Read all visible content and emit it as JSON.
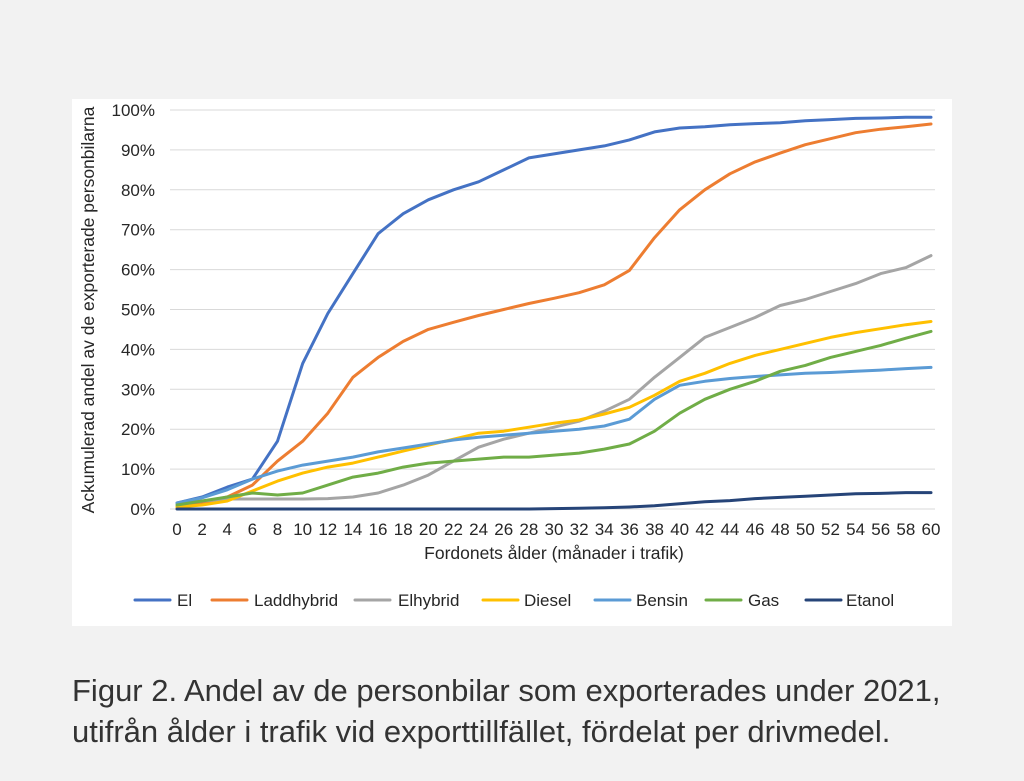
{
  "colors": {
    "page_background": "#f2f2f2",
    "panel_background": "#ffffff",
    "gridline": "#d9d9d9",
    "chart_text": "#262626",
    "caption_text": "#333333"
  },
  "figure": {
    "caption_line1": "Figur 2. Andel av de personbilar som exporterades under 2021,",
    "caption_line2": "utifrån ålder i trafik vid exporttillfället, fördelat per drivmedel."
  },
  "chart_data": {
    "type": "line",
    "xlabel": "Fordonets ålder (månader i trafik)",
    "ylabel": "Ackumulerad andel av de exporterade personbilarna",
    "xlim": [
      0,
      60
    ],
    "ylim": [
      0,
      100
    ],
    "grid": "horizontal",
    "legend_position": "bottom",
    "x": [
      0,
      2,
      4,
      6,
      8,
      10,
      12,
      14,
      16,
      18,
      20,
      22,
      24,
      26,
      28,
      30,
      32,
      34,
      36,
      38,
      40,
      42,
      44,
      46,
      48,
      50,
      52,
      54,
      56,
      58,
      60
    ],
    "x_tick_labels": [
      "0",
      "2",
      "4",
      "6",
      "8",
      "10",
      "12",
      "14",
      "16",
      "18",
      "20",
      "22",
      "24",
      "26",
      "28",
      "30",
      "32",
      "34",
      "36",
      "38",
      "40",
      "42",
      "44",
      "46",
      "48",
      "50",
      "52",
      "54",
      "56",
      "58",
      "60"
    ],
    "y_tick_labels": [
      "0%",
      "10%",
      "20%",
      "30%",
      "40%",
      "50%",
      "60%",
      "70%",
      "80%",
      "90%",
      "100%"
    ],
    "series": [
      {
        "name": "El",
        "color": "#4472C4",
        "values": [
          1.5,
          3,
          5.5,
          7.5,
          17,
          36.5,
          49,
          59,
          69,
          74,
          77.5,
          80,
          82,
          85,
          88,
          89,
          90,
          91,
          92.5,
          94.5,
          95.5,
          95.8,
          96.3,
          96.6,
          96.8,
          97.3,
          97.6,
          97.9,
          98,
          98.2,
          98.2
        ]
      },
      {
        "name": "Laddhybrid",
        "color": "#ED7D31",
        "values": [
          0.5,
          1.5,
          3,
          6,
          12,
          17,
          24,
          33,
          38,
          42,
          45,
          46.8,
          48.5,
          50,
          51.5,
          52.8,
          54.2,
          56.2,
          59.8,
          68,
          75,
          80,
          84,
          87,
          89.2,
          91.3,
          92.8,
          94.3,
          95.2,
          95.8,
          96.5
        ]
      },
      {
        "name": "Elhybrid",
        "color": "#A5A5A5",
        "values": [
          1.5,
          2,
          2.5,
          2.5,
          2.5,
          2.5,
          2.6,
          3,
          4,
          6,
          8.5,
          12,
          15.5,
          17.5,
          19,
          20.5,
          22,
          24.5,
          27.5,
          33,
          38,
          43,
          45.5,
          48,
          51,
          52.5,
          54.5,
          56.5,
          59,
          60.5,
          63.5
        ]
      },
      {
        "name": "Diesel",
        "color": "#FFC000",
        "values": [
          0.5,
          1,
          2,
          4.5,
          7,
          9,
          10.5,
          11.5,
          13,
          14.5,
          16,
          17.5,
          19,
          19.5,
          20.5,
          21.5,
          22.3,
          23.8,
          25.5,
          28.5,
          32,
          34,
          36.5,
          38.5,
          40,
          41.5,
          43,
          44.2,
          45.2,
          46.2,
          47
        ]
      },
      {
        "name": "Bensin",
        "color": "#5B9BD5",
        "values": [
          1.5,
          2.8,
          4.8,
          7.5,
          9.5,
          11,
          12,
          13,
          14.3,
          15.3,
          16.3,
          17.3,
          18,
          18.5,
          19,
          19.5,
          20,
          20.8,
          22.5,
          27.5,
          31,
          32,
          32.7,
          33.2,
          33.6,
          34,
          34.2,
          34.5,
          34.8,
          35.2,
          35.5
        ]
      },
      {
        "name": "Gas",
        "color": "#70AD47",
        "values": [
          1,
          2,
          3,
          4,
          3.5,
          4,
          6,
          8,
          9,
          10.5,
          11.5,
          12,
          12.5,
          13,
          13,
          13.5,
          14,
          15,
          16.3,
          19.5,
          24,
          27.5,
          30,
          32,
          34.5,
          36,
          38,
          39.5,
          41,
          42.8,
          44.5
        ]
      },
      {
        "name": "Etanol",
        "color": "#264478",
        "values": [
          0,
          0,
          0,
          0,
          0,
          0,
          0,
          0,
          0,
          0,
          0,
          0,
          0,
          0,
          0,
          0.1,
          0.2,
          0.3,
          0.5,
          0.8,
          1.3,
          1.8,
          2.1,
          2.6,
          2.9,
          3.2,
          3.5,
          3.8,
          3.9,
          4.1,
          4.1
        ]
      }
    ]
  }
}
